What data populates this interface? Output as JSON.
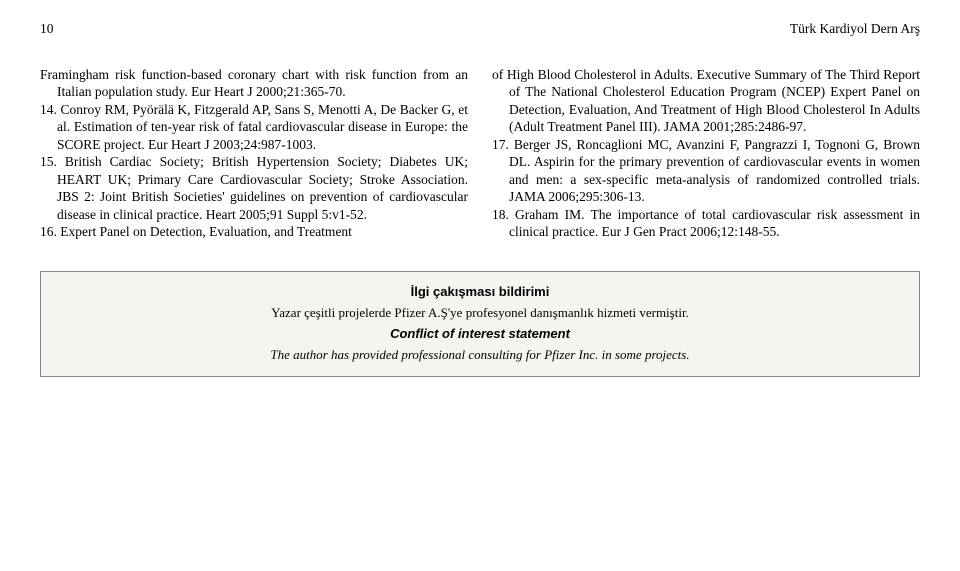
{
  "header": {
    "page_number": "10",
    "journal_title": "Türk Kardiyol Dern Arş"
  },
  "left_column": {
    "items": [
      {
        "num": "",
        "text": "Framingham risk function-based coronary chart with risk function from an Italian population study. Eur Heart J 2000;21:365-70."
      },
      {
        "num": "14.",
        "text": "Conroy RM, Pyörälä K, Fitzgerald AP, Sans S, Menotti A, De Backer G, et al. Estimation of ten-year risk of fatal cardiovascular disease in Europe: the SCORE project. Eur Heart J 2003;24:987-1003."
      },
      {
        "num": "15.",
        "text": "British Cardiac Society; British Hypertension Society; Diabetes UK; HEART UK; Primary Care Cardiovascular Society; Stroke Association. JBS 2: Joint British Societies' guidelines on prevention of cardiovascular disease in clinical practice. Heart 2005;91 Suppl 5:v1-52."
      },
      {
        "num": "16.",
        "text": "Expert Panel on Detection, Evaluation, and Treatment"
      }
    ]
  },
  "right_column": {
    "items": [
      {
        "num": "",
        "text": "of High Blood Cholesterol in Adults. Executive Summary of The Third Report of The National Cholesterol Education Program (NCEP) Expert Panel on Detection, Evaluation, And Treatment of High Blood Cholesterol In Adults (Adult Treatment Panel III). JAMA 2001;285:2486-97."
      },
      {
        "num": "17.",
        "text": "Berger JS, Roncaglioni MC, Avanzini F, Pangrazzi I, Tognoni G, Brown DL. Aspirin for the primary prevention of cardiovascular events in women and men: a sex-specific meta-analysis of randomized controlled trials. JAMA 2006;295:306-13."
      },
      {
        "num": "18.",
        "text": "Graham IM. The importance of total cardiovascular risk assessment in clinical practice. Eur J Gen Pract 2006;12:148-55."
      }
    ]
  },
  "disclosure_box": {
    "title_tr": "İlgi çakışması bildirimi",
    "text_tr": "Yazar çeşitli projelerde Pfizer A.Ş'ye profesyonel danışmanlık hizmeti vermiştir.",
    "title_en": "Conflict of interest statement",
    "text_en": "The author has provided professional consulting for Pfizer Inc. in some projects."
  }
}
